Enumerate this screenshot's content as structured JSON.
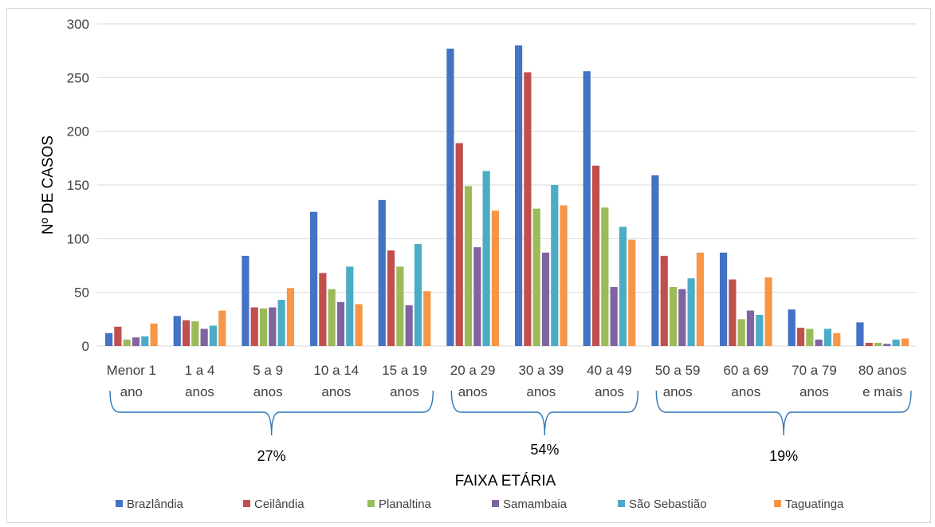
{
  "chart_data": {
    "type": "bar",
    "title": "",
    "xlabel": "FAIXA ETÁRIA",
    "ylabel": "Nº DE CASOS",
    "ylim": [
      0,
      300
    ],
    "yticks": [
      0,
      50,
      100,
      150,
      200,
      250,
      300
    ],
    "grid": true,
    "legend_position": "bottom",
    "categories": [
      [
        "Menor 1",
        "ano"
      ],
      [
        "1 a 4",
        "anos"
      ],
      [
        "5 a 9",
        "anos"
      ],
      [
        "10 a 14",
        "anos"
      ],
      [
        "15 a 19",
        "anos"
      ],
      [
        "20 a 29",
        "anos"
      ],
      [
        "30 a 39",
        "anos"
      ],
      [
        "40 a 49",
        "anos"
      ],
      [
        "50 a 59",
        "anos"
      ],
      [
        "60 a 69",
        "anos"
      ],
      [
        "70 a 79",
        "anos"
      ],
      [
        "80 anos",
        "e mais"
      ]
    ],
    "series": [
      {
        "name": "Brazlândia",
        "color": "#4472C4",
        "values": [
          12,
          28,
          84,
          125,
          136,
          277,
          280,
          256,
          159,
          87,
          34,
          22
        ]
      },
      {
        "name": "Ceilândia",
        "color": "#C0504D",
        "values": [
          18,
          24,
          36,
          68,
          89,
          189,
          255,
          168,
          84,
          62,
          17,
          3
        ]
      },
      {
        "name": "Planaltina",
        "color": "#9BBB59",
        "values": [
          6,
          23,
          35,
          53,
          74,
          149,
          128,
          129,
          55,
          25,
          16,
          3
        ]
      },
      {
        "name": "Samambaia",
        "color": "#8064A2",
        "values": [
          8,
          16,
          36,
          41,
          38,
          92,
          87,
          55,
          53,
          33,
          6,
          2
        ]
      },
      {
        "name": "São Sebastião",
        "color": "#4BACC6",
        "values": [
          9,
          19,
          43,
          74,
          95,
          163,
          150,
          111,
          63,
          29,
          16,
          6
        ]
      },
      {
        "name": "Taguatinga",
        "color": "#F79646",
        "values": [
          21,
          33,
          54,
          39,
          51,
          126,
          131,
          99,
          87,
          64,
          12,
          7
        ]
      }
    ],
    "annotations": [
      {
        "label": "27%",
        "from_category": 0,
        "to_category": 4
      },
      {
        "label": "54%",
        "from_category": 5,
        "to_category": 7
      },
      {
        "label": "19%",
        "from_category": 8,
        "to_category": 11
      }
    ],
    "colors": {
      "grid": "#d9d9d9",
      "bracket": "#2E75B6"
    }
  }
}
